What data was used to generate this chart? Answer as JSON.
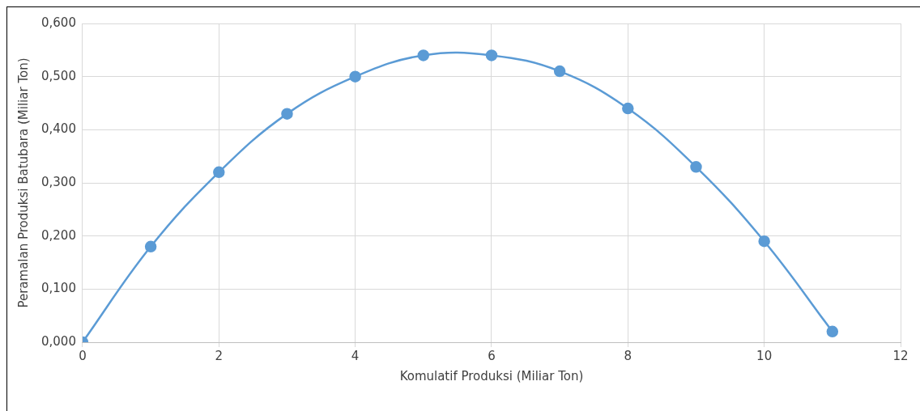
{
  "chart_data": {
    "type": "line",
    "xlabel": "Komulatif Produksi (Miliar Ton)",
    "ylabel": "Peramalan Produksi Batubara (Miliar Ton)",
    "x": [
      0,
      1,
      2,
      3,
      4,
      5,
      6,
      7,
      8,
      9,
      10,
      11
    ],
    "series": [
      {
        "color": "#5b9bd5",
        "values": [
          0,
          0.18,
          0.32,
          0.43,
          0.5,
          0.54,
          0.54,
          0.51,
          0.44,
          0.33,
          0.19,
          0.02
        ]
      }
    ],
    "xlim": [
      0,
      12
    ],
    "xticks": [
      0,
      2,
      4,
      6,
      8,
      10,
      12
    ],
    "ylim": [
      0,
      0.6
    ],
    "yticks": [
      {
        "value": 0,
        "label": "0,000"
      },
      {
        "value": 0.1,
        "label": "0,100"
      },
      {
        "value": 0.2,
        "label": "0,200"
      },
      {
        "value": 0.3,
        "label": "0,300"
      },
      {
        "value": 0.4,
        "label": "0,400"
      },
      {
        "value": 0.5,
        "label": "0,500"
      },
      {
        "value": 0.6,
        "label": "0,600"
      }
    ],
    "grid": true,
    "legend": false,
    "marker": "circle",
    "line_style": "solid"
  }
}
